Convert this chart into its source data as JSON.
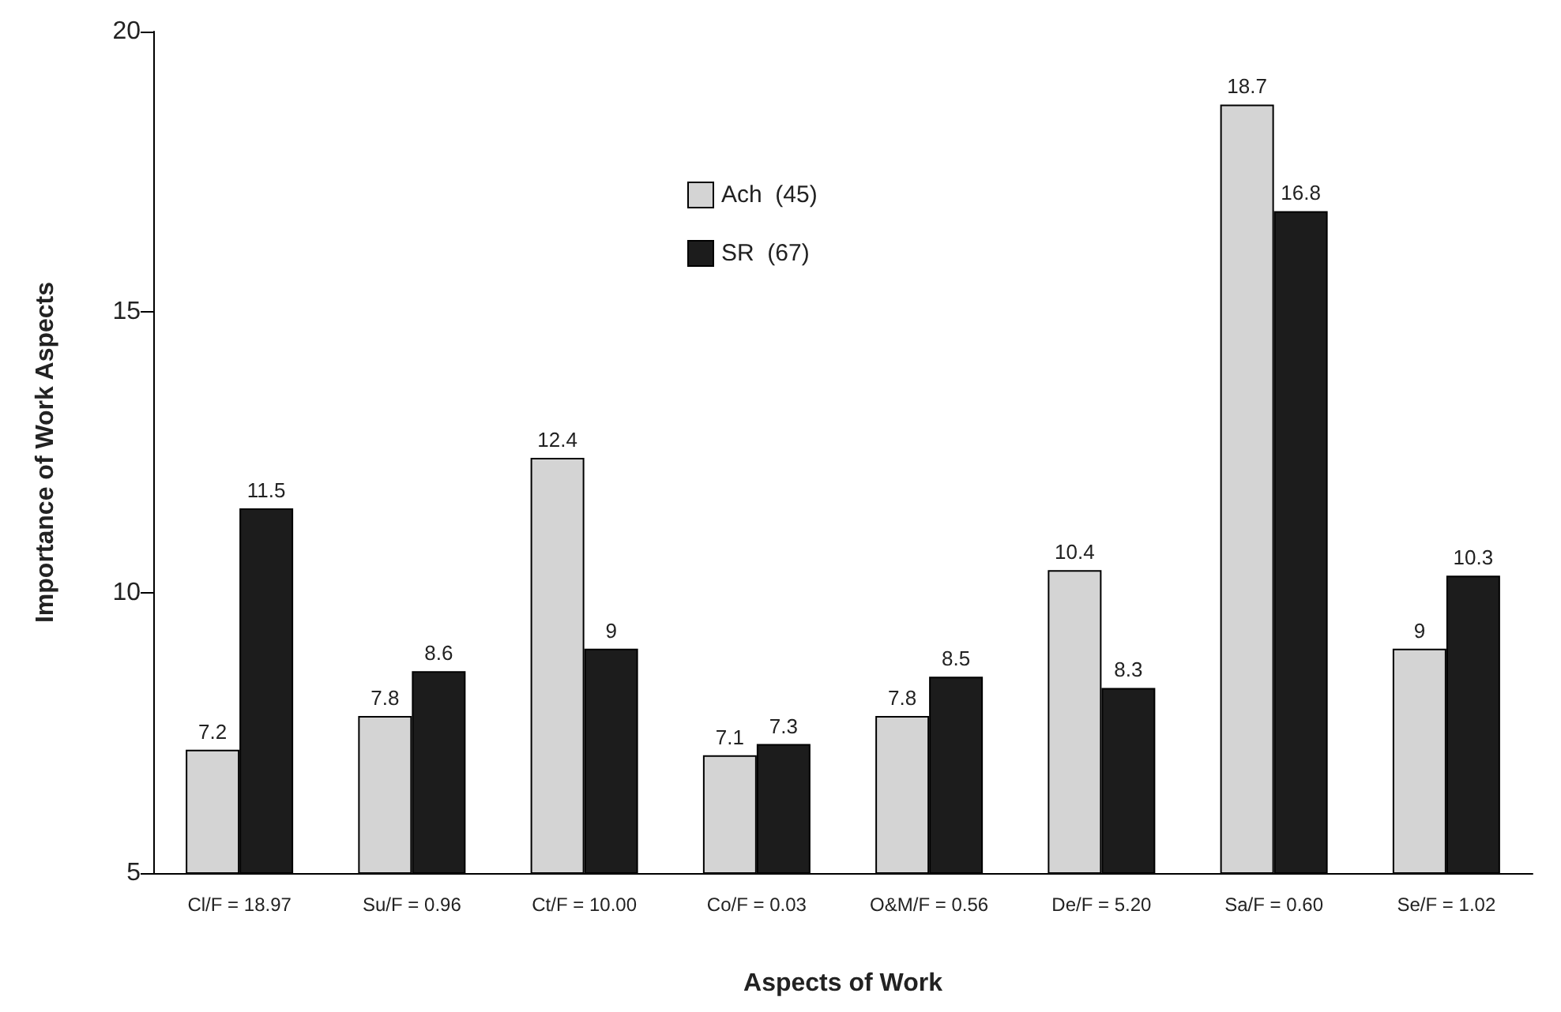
{
  "chart_data": {
    "type": "bar",
    "xlabel": "Aspects of Work",
    "ylabel": "Importance of Work Aspects",
    "categories": [
      "Cl/F = 18.97",
      "Su/F = 0.96",
      "Ct/F = 10.00",
      "Co/F = 0.03",
      "O&M/F = 0.56",
      "De/F = 5.20",
      "Sa/F = 0.60",
      "Se/F = 1.02"
    ],
    "series": [
      {
        "name": "Ach  (45)",
        "color": "#d4d4d4",
        "values": [
          7.2,
          7.8,
          12.4,
          7.1,
          7.8,
          10.4,
          18.7,
          9
        ]
      },
      {
        "name": "SR  (67)",
        "color": "#1c1c1c",
        "values": [
          11.5,
          8.6,
          9,
          7.3,
          8.5,
          8.3,
          16.8,
          10.3
        ]
      }
    ],
    "ylim": [
      5,
      20
    ],
    "yticks": [
      5,
      10,
      15,
      20
    ],
    "grid": false,
    "legend": "top",
    "data_labels": true
  }
}
